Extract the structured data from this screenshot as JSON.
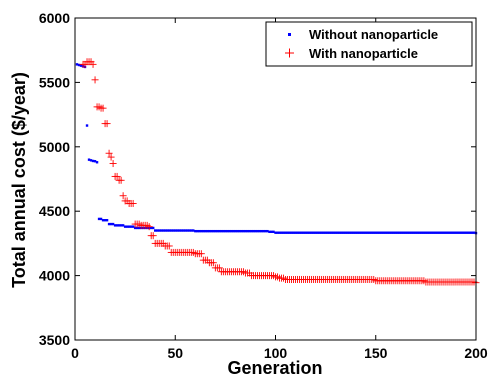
{
  "chart_data": {
    "type": "scatter",
    "title": "",
    "xlabel": "Generation",
    "ylabel": "Total annual cost ($/year)",
    "xlim": [
      0,
      200
    ],
    "ylim": [
      3500,
      6000
    ],
    "xticks": [
      "0",
      "50",
      "100",
      "150",
      "200"
    ],
    "yticks": [
      "3500",
      "4000",
      "4500",
      "5000",
      "5500",
      "6000"
    ],
    "grid": false,
    "legend_position": "top-right",
    "series": [
      {
        "name": "Without nanoparticle",
        "marker": "dot",
        "color": "#0000ff",
        "steps": [
          [
            1,
            5640
          ],
          [
            2,
            5635
          ],
          [
            3,
            5630
          ],
          [
            4,
            5625
          ],
          [
            5,
            5620
          ],
          [
            6,
            5165
          ],
          [
            7,
            4900
          ],
          [
            8,
            4895
          ],
          [
            9,
            4890
          ],
          [
            10,
            4888
          ],
          [
            11,
            4880
          ],
          [
            12,
            4440
          ],
          [
            14,
            4430
          ],
          [
            17,
            4400
          ],
          [
            20,
            4390
          ],
          [
            25,
            4380
          ],
          [
            30,
            4370
          ],
          [
            40,
            4350
          ],
          [
            60,
            4345
          ],
          [
            97,
            4340
          ],
          [
            100,
            4333
          ],
          [
            200,
            4330
          ]
        ]
      },
      {
        "name": "With nanoparticle",
        "marker": "plus",
        "color": "#ff0000",
        "steps": [
          [
            4,
            5640
          ],
          [
            6,
            5660
          ],
          [
            9,
            5640
          ],
          [
            10,
            5520
          ],
          [
            11,
            5310
          ],
          [
            13,
            5300
          ],
          [
            15,
            5180
          ],
          [
            17,
            4950
          ],
          [
            18,
            4920
          ],
          [
            19,
            4870
          ],
          [
            20,
            4770
          ],
          [
            22,
            4740
          ],
          [
            24,
            4620
          ],
          [
            25,
            4580
          ],
          [
            27,
            4560
          ],
          [
            30,
            4400
          ],
          [
            33,
            4390
          ],
          [
            37,
            4380
          ],
          [
            38,
            4310
          ],
          [
            40,
            4250
          ],
          [
            45,
            4230
          ],
          [
            48,
            4180
          ],
          [
            60,
            4170
          ],
          [
            64,
            4120
          ],
          [
            67,
            4100
          ],
          [
            70,
            4060
          ],
          [
            73,
            4030
          ],
          [
            85,
            4020
          ],
          [
            88,
            4000
          ],
          [
            100,
            3990
          ],
          [
            102,
            3980
          ],
          [
            105,
            3970
          ],
          [
            150,
            3960
          ],
          [
            160,
            3960
          ],
          [
            175,
            3950
          ],
          [
            200,
            3945
          ]
        ]
      }
    ]
  }
}
